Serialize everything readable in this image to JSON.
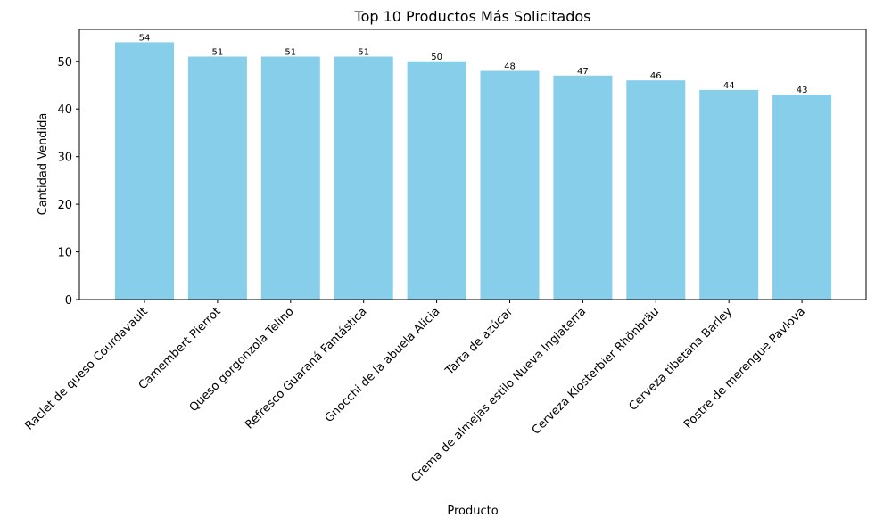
{
  "chart_data": {
    "type": "bar",
    "title": "Top 10 Productos Más Solicitados",
    "xlabel": "Producto",
    "ylabel": "Cantidad Vendida",
    "categories": [
      "Raclet de queso Courdavault",
      "Camembert Pierrot",
      "Queso gorgonzola Telino",
      "Refresco Guaraná Fantástica",
      "Gnocchi de la abuela Alicia",
      "Tarta de azúcar",
      "Crema de almejas estilo Nueva Inglaterra",
      "Cerveza Klosterbier Rhönbräu",
      "Cerveza tibetana Barley",
      "Postre de merengue Pavlova"
    ],
    "values": [
      54,
      51,
      51,
      51,
      50,
      48,
      47,
      46,
      44,
      43
    ],
    "data_labels": [
      "54",
      "51",
      "51",
      "51",
      "50",
      "48",
      "47",
      "46",
      "44",
      "43"
    ],
    "yticks": [
      "0",
      "10",
      "20",
      "30",
      "40",
      "50"
    ],
    "ylim": [
      0,
      56.7
    ],
    "grid": false,
    "bar_color": "#87CEEB"
  }
}
